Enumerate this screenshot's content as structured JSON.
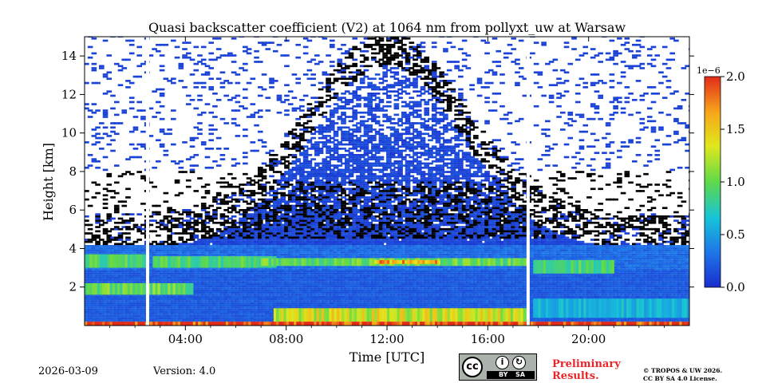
{
  "chart_data": {
    "type": "heatmap",
    "title": "Quasi backscatter coefficient (V2) at 1064 nm from pollyxt_uw at Warsaw",
    "xlabel": "Time [UTC]",
    "ylabel": "Height [km]",
    "xlim_hours": [
      0,
      24
    ],
    "ylim_km": [
      0,
      15
    ],
    "xticks": [
      {
        "hour": 4,
        "label": "04:00"
      },
      {
        "hour": 8,
        "label": "08:00"
      },
      {
        "hour": 12,
        "label": "12:00"
      },
      {
        "hour": 16,
        "label": "16:00"
      },
      {
        "hour": 20,
        "label": "20:00"
      }
    ],
    "yticks": [
      {
        "km": 2,
        "label": "2"
      },
      {
        "km": 4,
        "label": "4"
      },
      {
        "km": 6,
        "label": "6"
      },
      {
        "km": 8,
        "label": "8"
      },
      {
        "km": 10,
        "label": "10"
      },
      {
        "km": 12,
        "label": "12"
      },
      {
        "km": 14,
        "label": "14"
      }
    ],
    "colorbar": {
      "min": 0.0,
      "max": 2.0,
      "scale_label": "1e−6",
      "ticks": [
        {
          "value": 0.0,
          "label": "0.0"
        },
        {
          "value": 0.5,
          "label": "0.5"
        },
        {
          "value": 1.0,
          "label": "1.0"
        },
        {
          "value": 1.5,
          "label": "1.5"
        },
        {
          "value": 2.0,
          "label": "2.0"
        }
      ],
      "colors": [
        "#1a2dcf",
        "#1e78e8",
        "#16c4d8",
        "#5fd94a",
        "#dfe81c",
        "#f7a61a",
        "#e22b1a"
      ]
    },
    "data_gaps_hours": [
      2.5,
      17.6
    ],
    "layers": [
      {
        "name": "upper-layer",
        "t_start": 0.0,
        "t_end": 2.5,
        "h_bottom_km": 3.0,
        "h_top_km": 3.7,
        "value": 0.9
      },
      {
        "name": "mid-layer",
        "t_start": 0.0,
        "t_end": 4.3,
        "h_bottom_km": 1.6,
        "h_top_km": 2.2,
        "value": 1.0
      },
      {
        "name": "upper-layer-2",
        "t_start": 2.7,
        "t_end": 7.5,
        "h_bottom_km": 3.0,
        "h_top_km": 3.6,
        "value": 0.9
      },
      {
        "name": "elevated-aerosol",
        "t_start": 7.0,
        "t_end": 17.5,
        "h_bottom_km": 3.1,
        "h_top_km": 3.5,
        "value": 1.0
      },
      {
        "name": "elevated-aerosol-peak",
        "t_start": 11.5,
        "t_end": 14.0,
        "h_bottom_km": 3.2,
        "h_top_km": 3.4,
        "value": 1.6
      },
      {
        "name": "boundary-layer",
        "t_start": 7.5,
        "t_end": 17.5,
        "h_bottom_km": 0.1,
        "h_top_km": 0.9,
        "value": 1.3
      },
      {
        "name": "evening-layer",
        "t_start": 17.8,
        "t_end": 21.0,
        "h_bottom_km": 2.7,
        "h_top_km": 3.4,
        "value": 0.9
      },
      {
        "name": "evening-residual",
        "t_start": 17.8,
        "t_end": 24.0,
        "h_bottom_km": 0.4,
        "h_top_km": 1.4,
        "value": 0.6
      },
      {
        "name": "surface",
        "t_start": 0.0,
        "t_end": 24.0,
        "h_bottom_km": 0.0,
        "h_top_km": 0.2,
        "value": 2.0
      }
    ]
  },
  "footer": {
    "date": "2026-03-09",
    "version": "Version: 4.0",
    "license_badge": {
      "cc": "cc",
      "by": "BY",
      "sa": "SA"
    },
    "preliminary_line1": "Preliminary",
    "preliminary_line2": "Results.",
    "copyright_line1": "© TROPOS & UW 2026.",
    "copyright_line2": "CC BY SA 4.0 License."
  }
}
